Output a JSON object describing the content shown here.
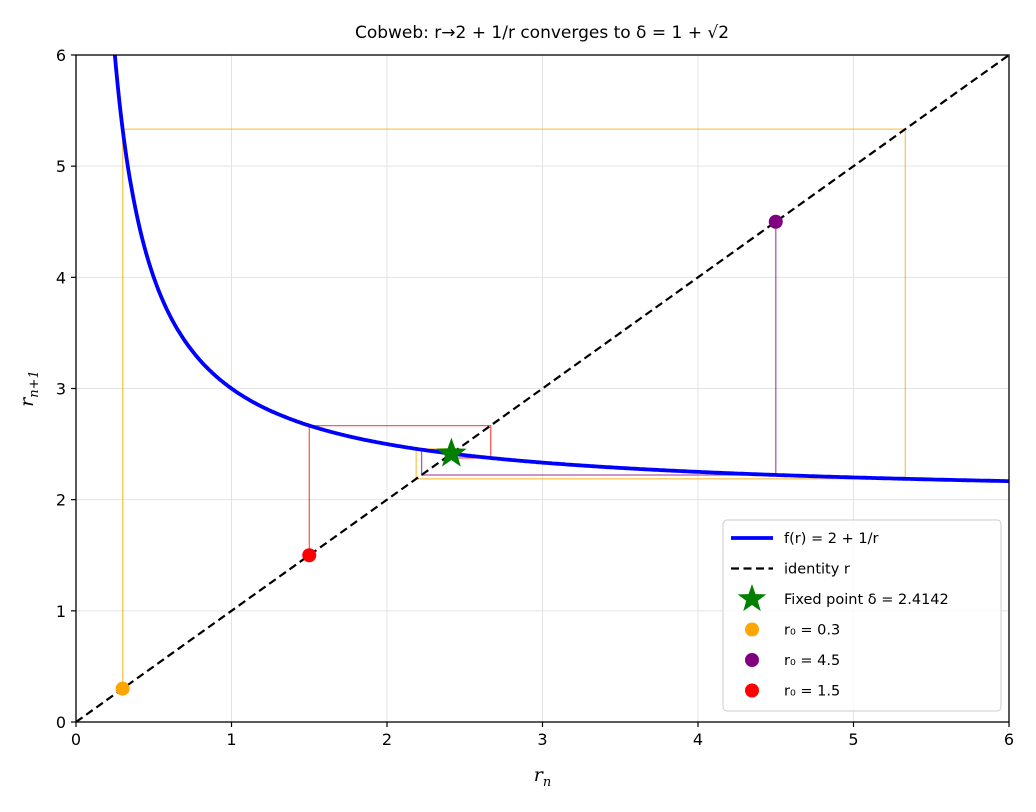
{
  "chart_data": {
    "type": "line",
    "title": "Cobweb: r→2 + 1/r converges to δ = 1 + √2",
    "xlabel": "r_n",
    "ylabel": "r_{n+1}",
    "xlim": [
      0,
      6
    ],
    "ylim": [
      0,
      6
    ],
    "xticks": [
      "0",
      "1",
      "2",
      "3",
      "4",
      "5",
      "6"
    ],
    "yticks": [
      "0",
      "1",
      "2",
      "3",
      "4",
      "5",
      "6"
    ],
    "grid": true,
    "legend_position": "lower right",
    "series": [
      {
        "name": "f(r) = 2 + 1/r",
        "kind": "curve",
        "color": "#0000ff",
        "function": "2 + 1/r",
        "x_range": [
          0.2,
          6
        ]
      },
      {
        "name": "identity r",
        "kind": "dashed-line",
        "color": "#000000",
        "x": [
          0,
          6
        ],
        "y": [
          0,
          6
        ]
      },
      {
        "name": "Fixed point δ = 2.4142",
        "kind": "marker-star",
        "color": "#008000",
        "x": 2.4142,
        "y": 2.4142
      },
      {
        "name": "r0 = 0.3",
        "kind": "cobweb",
        "color": "#ffa500",
        "start": 0.3,
        "iterates": [
          0.3,
          5.3333,
          2.1875,
          2.4571,
          2.407
        ]
      },
      {
        "name": "r0 = 4.5",
        "kind": "cobweb",
        "color": "#800080",
        "start": 4.5,
        "iterates": [
          4.5,
          2.2222,
          2.45,
          2.4082
        ]
      },
      {
        "name": "r0 = 1.5",
        "kind": "cobweb",
        "color": "#ff0000",
        "start": 1.5,
        "iterates": [
          1.5,
          2.6667,
          2.375,
          2.4211
        ]
      }
    ]
  },
  "legend": {
    "items": [
      {
        "label": "f(r) = 2 + 1/r",
        "symbol": "line",
        "color": "#0000ff"
      },
      {
        "label": "identity r",
        "symbol": "dashed",
        "color": "#000000"
      },
      {
        "label": "Fixed point δ = 2.4142",
        "symbol": "star",
        "color": "#008000"
      },
      {
        "label": "r₀ = 0.3",
        "symbol": "dot",
        "color": "#ffa500"
      },
      {
        "label": "r₀ = 4.5",
        "symbol": "dot",
        "color": "#800080"
      },
      {
        "label": "r₀ = 1.5",
        "symbol": "dot",
        "color": "#ff0000"
      }
    ]
  }
}
